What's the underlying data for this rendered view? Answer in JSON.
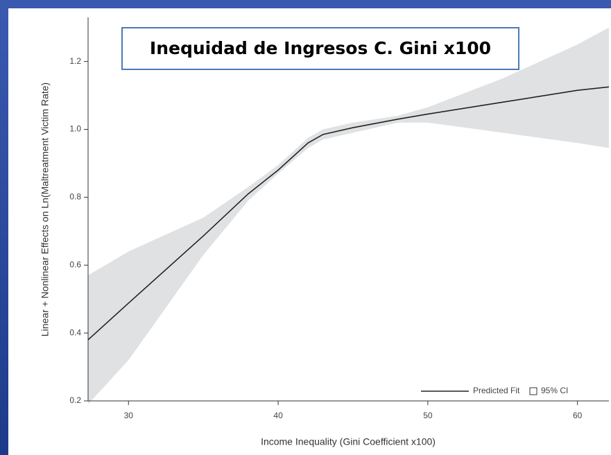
{
  "chart_data": {
    "type": "line",
    "title": "Inequidad de Ingresos C. Gini x100",
    "x_label": "Income Inequality (Gini Coefficient x100)",
    "y_label": "Linear + Nonlinear Effects on Ln(Maltreatment Victim Rate)",
    "x": [
      27.3,
      30,
      35,
      38,
      40,
      42,
      43,
      45,
      48,
      50,
      55,
      60,
      62.1
    ],
    "series": [
      {
        "name": "Predicted Fit",
        "color": "#222222",
        "values": [
          0.38,
          0.488,
          0.686,
          0.81,
          0.88,
          0.96,
          0.985,
          1.005,
          1.03,
          1.045,
          1.08,
          1.115,
          1.125
        ]
      }
    ],
    "band": {
      "name": "95% CI",
      "color": "#dfe1e3",
      "lower": [
        0.19,
        0.32,
        0.63,
        0.79,
        0.87,
        0.945,
        0.97,
        0.99,
        1.02,
        1.02,
        0.99,
        0.96,
        0.945
      ],
      "upper": [
        0.57,
        0.64,
        0.74,
        0.83,
        0.895,
        0.975,
        1.0,
        1.02,
        1.04,
        1.065,
        1.15,
        1.25,
        1.3
      ]
    },
    "xlim": [
      27.3,
      62.1
    ],
    "ylim": [
      0.2,
      1.33
    ],
    "xticks": [
      30,
      40,
      50,
      60
    ],
    "yticks": [
      {
        "value": 0.2,
        "label": "0.2"
      },
      {
        "value": 0.4,
        "label": "0.4"
      },
      {
        "value": 0.6,
        "label": "0.6"
      },
      {
        "value": 0.8,
        "label": "0.8"
      },
      {
        "value": 1.0,
        "label": "1.0"
      },
      {
        "value": 1.2,
        "label": "1.2"
      }
    ],
    "legend": "bottom-right"
  }
}
